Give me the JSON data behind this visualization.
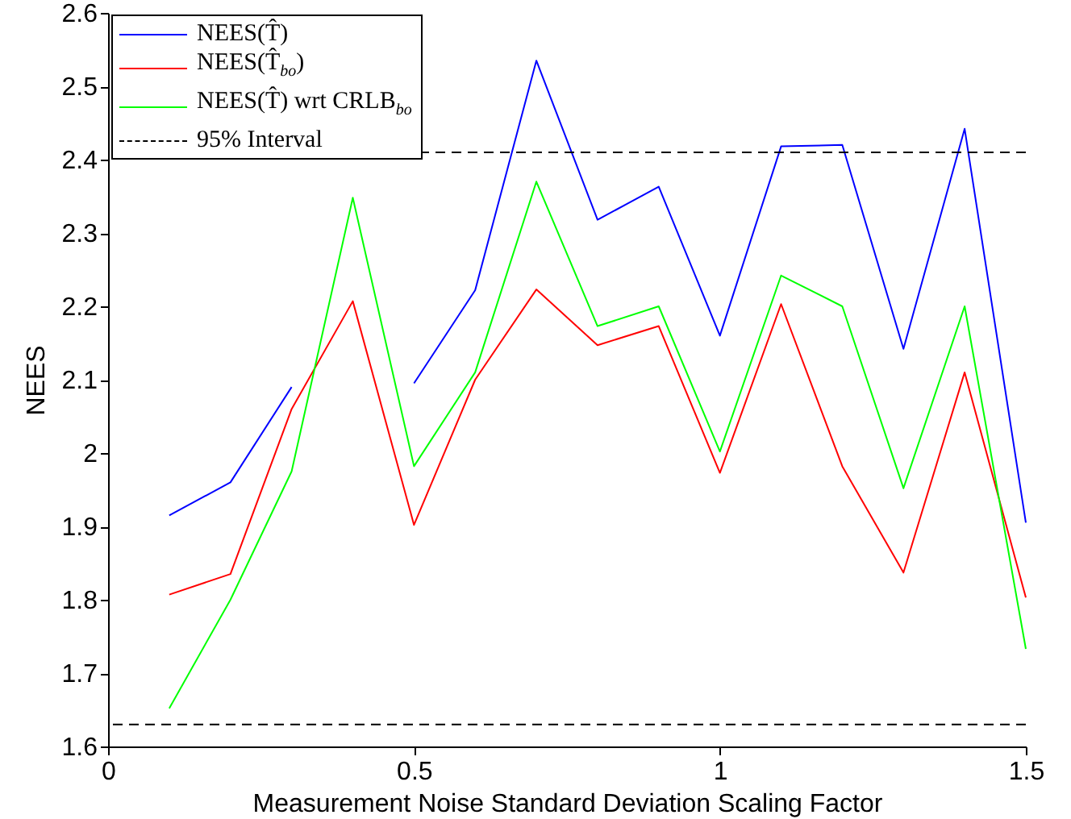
{
  "chart_data": {
    "type": "line",
    "xlabel": "Measurement Noise Standard Deviation Scaling Factor",
    "ylabel": "NEES",
    "x": [
      0.1,
      0.2,
      0.3,
      0.4,
      0.5,
      0.6,
      0.7,
      0.8,
      0.9,
      1.0,
      1.1,
      1.2,
      1.3,
      1.4,
      1.5
    ],
    "series": [
      {
        "name": "NEES(T̂)",
        "color": "#0000ff",
        "values": [
          1.915,
          1.96,
          2.09,
          null,
          2.095,
          2.222,
          2.535,
          2.318,
          2.363,
          2.16,
          2.418,
          2.42,
          2.142,
          2.442,
          1.905
        ]
      },
      {
        "name": "NEES(T̂$_{bo}$)",
        "color": "#ff0000",
        "values": [
          1.807,
          1.835,
          2.06,
          2.207,
          1.902,
          2.1,
          2.223,
          2.147,
          2.173,
          1.973,
          2.203,
          1.982,
          1.837,
          2.11,
          1.803
        ]
      },
      {
        "name": "NEES(T̂) wrt CRLB$_{bo}$",
        "color": "#00ff00",
        "values": [
          1.652,
          1.8,
          1.975,
          2.348,
          1.982,
          2.11,
          2.37,
          2.173,
          2.2,
          2.002,
          2.242,
          2.2,
          1.952,
          2.2,
          1.733
        ]
      }
    ],
    "ref_lines": [
      {
        "axis": "y",
        "value": 2.41,
        "label": "95% Interval",
        "color": "#000000",
        "line_style": "dashed"
      },
      {
        "axis": "y",
        "value": 1.63,
        "label": null,
        "color": "#000000",
        "line_style": "dashed"
      }
    ],
    "xlim": [
      0,
      1.5
    ],
    "xticks": [
      0,
      0.5,
      1,
      1.5
    ],
    "ylim": [
      1.6,
      2.6
    ],
    "yticks": [
      1.6,
      1.7,
      1.8,
      1.9,
      2,
      2.1,
      2.2,
      2.3,
      2.4,
      2.5,
      2.6
    ],
    "grid": false,
    "legend": "top left",
    "marker": "none",
    "line_style": "solid"
  }
}
